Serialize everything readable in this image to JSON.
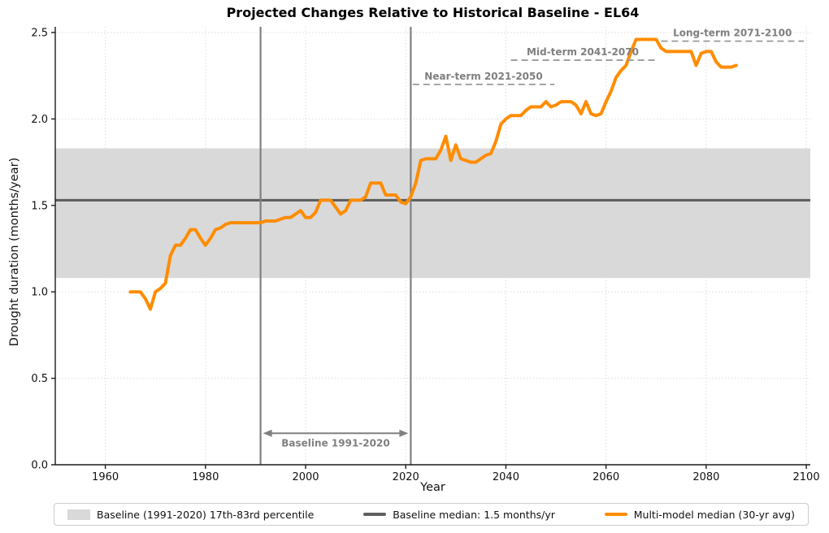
{
  "title": "Projected Changes Relative to Historical Baseline - EL64",
  "legend": {
    "items": [
      {
        "swatch": "patch",
        "label": "Baseline (1991-2020) 17th-83rd percentile"
      },
      {
        "swatch": "line-gray",
        "label": "Baseline median: 1.5 months/yr"
      },
      {
        "swatch": "line-orange",
        "label": "Multi-model median (30-yr avg)"
      }
    ]
  },
  "chart_data": {
    "type": "line",
    "title": "Projected Changes Relative to Historical Baseline - EL64",
    "xlabel": "Year",
    "ylabel": "Drought duration (months/year)",
    "xlim": [
      1950,
      2100.8
    ],
    "ylim": [
      0,
      2.533
    ],
    "xticks": [
      1960,
      1980,
      2000,
      2020,
      2040,
      2060,
      2080,
      2100
    ],
    "yticks": [
      0.0,
      0.5,
      1.0,
      1.5,
      2.0,
      2.5
    ],
    "grid": true,
    "legend_position": "bottom",
    "colors": {
      "series": "#ff8c00",
      "median_line": "#5f5f5f",
      "band": "#d9d9d9",
      "vline": "#808080",
      "annotation": "#7f7f7f",
      "period_dash": "#999999",
      "grid": "#dddddd",
      "axis": "#1a1a1a"
    },
    "baseline_band": {
      "low": 1.08,
      "high": 1.83,
      "label": "Baseline (1991-2020) 17th-83rd percentile"
    },
    "baseline_median": {
      "value": 1.53,
      "label": "Baseline median: 1.5 months/yr"
    },
    "vlines": [
      1991,
      2021
    ],
    "baseline_span_annotation": {
      "label": "Baseline 1991-2020",
      "x0": 1991,
      "x1": 2021,
      "y": 0.182
    },
    "period_lines": [
      {
        "label": "Near-term 2021-2050",
        "x0": 2021.4,
        "x1": 2049.7,
        "y": 2.2
      },
      {
        "label": "Mid-term 2041-2070",
        "x0": 2041.0,
        "x1": 2069.7,
        "y": 2.34
      },
      {
        "label": "Long-term 2071-2100",
        "x0": 2071.0,
        "x1": 2099.5,
        "y": 2.45
      }
    ],
    "series": [
      {
        "name": "Multi-model median (30-yr avg)",
        "x": [
          1965,
          1966,
          1967,
          1968,
          1969,
          1970,
          1971,
          1972,
          1973,
          1974,
          1975,
          1976,
          1977,
          1978,
          1979,
          1980,
          1981,
          1982,
          1983,
          1984,
          1985,
          1986,
          1987,
          1988,
          1989,
          1990,
          1991,
          1992,
          1993,
          1994,
          1995,
          1996,
          1997,
          1998,
          1999,
          2000,
          2001,
          2002,
          2003,
          2004,
          2005,
          2006,
          2007,
          2008,
          2009,
          2010,
          2011,
          2012,
          2013,
          2014,
          2015,
          2016,
          2017,
          2018,
          2019,
          2020,
          2021,
          2022,
          2023,
          2024,
          2025,
          2026,
          2027,
          2028,
          2029,
          2030,
          2031,
          2032,
          2033,
          2034,
          2035,
          2036,
          2037,
          2038,
          2039,
          2040,
          2041,
          2042,
          2043,
          2044,
          2045,
          2046,
          2047,
          2048,
          2049,
          2050,
          2051,
          2052,
          2053,
          2054,
          2055,
          2056,
          2057,
          2058,
          2059,
          2060,
          2061,
          2062,
          2063,
          2064,
          2065,
          2066,
          2067,
          2068,
          2069,
          2070,
          2071,
          2072,
          2073,
          2074,
          2075,
          2076,
          2077,
          2078,
          2079,
          2080,
          2081,
          2082,
          2083,
          2084,
          2085,
          2086
        ],
        "y": [
          1.0,
          1.0,
          1.0,
          0.96,
          0.9,
          1.0,
          1.02,
          1.05,
          1.21,
          1.27,
          1.27,
          1.31,
          1.36,
          1.36,
          1.31,
          1.27,
          1.31,
          1.36,
          1.37,
          1.39,
          1.4,
          1.4,
          1.4,
          1.4,
          1.4,
          1.4,
          1.4,
          1.41,
          1.41,
          1.41,
          1.42,
          1.43,
          1.43,
          1.45,
          1.47,
          1.43,
          1.43,
          1.46,
          1.53,
          1.53,
          1.53,
          1.49,
          1.45,
          1.47,
          1.53,
          1.53,
          1.53,
          1.55,
          1.63,
          1.63,
          1.63,
          1.56,
          1.56,
          1.56,
          1.52,
          1.51,
          1.55,
          1.63,
          1.76,
          1.77,
          1.77,
          1.77,
          1.82,
          1.9,
          1.76,
          1.85,
          1.77,
          1.76,
          1.75,
          1.75,
          1.77,
          1.79,
          1.8,
          1.87,
          1.97,
          2.0,
          2.02,
          2.02,
          2.02,
          2.05,
          2.07,
          2.07,
          2.07,
          2.1,
          2.07,
          2.08,
          2.1,
          2.1,
          2.1,
          2.08,
          2.03,
          2.1,
          2.03,
          2.02,
          2.03,
          2.1,
          2.16,
          2.24,
          2.28,
          2.31,
          2.39,
          2.46,
          2.46,
          2.46,
          2.46,
          2.46,
          2.41,
          2.39,
          2.39,
          2.39,
          2.39,
          2.39,
          2.39,
          2.31,
          2.38,
          2.39,
          2.39,
          2.33,
          2.3,
          2.3,
          2.3,
          2.31
        ]
      }
    ]
  }
}
